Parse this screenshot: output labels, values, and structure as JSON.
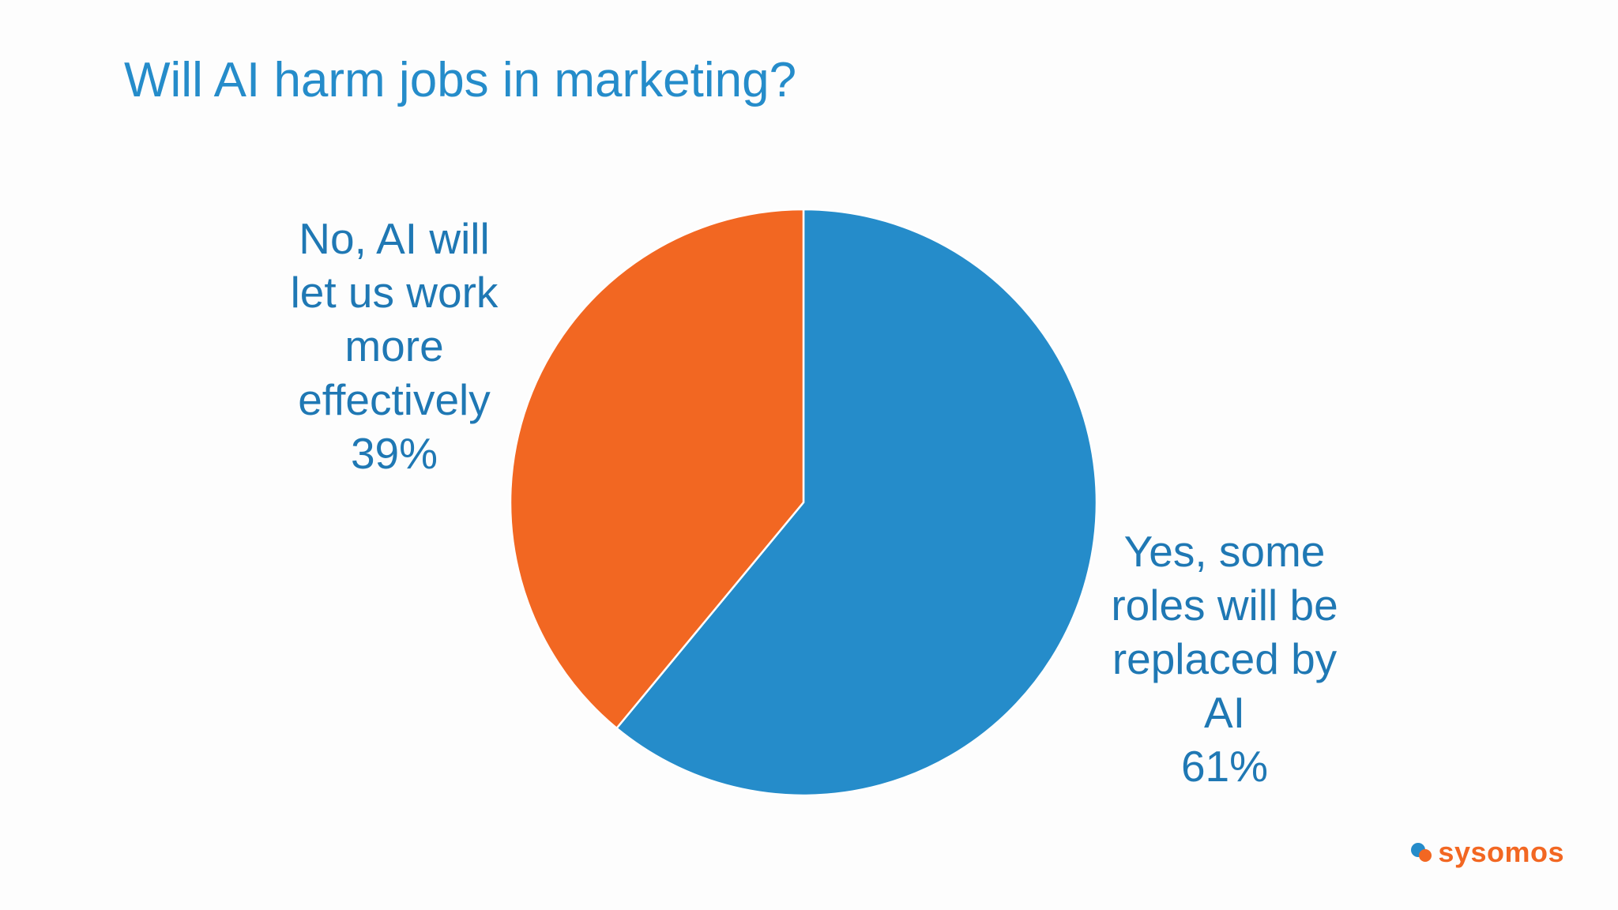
{
  "chart_data": {
    "type": "pie",
    "title": "Will AI harm jobs in marketing?",
    "categories": [
      "Yes, some roles will be replaced by AI",
      "No, AI will let us work more effectively"
    ],
    "values": [
      61,
      39
    ],
    "value_labels": [
      "61%",
      "39%"
    ],
    "colors": [
      "#258cca",
      "#f26722"
    ]
  },
  "logo": {
    "text": "sysomos"
  }
}
